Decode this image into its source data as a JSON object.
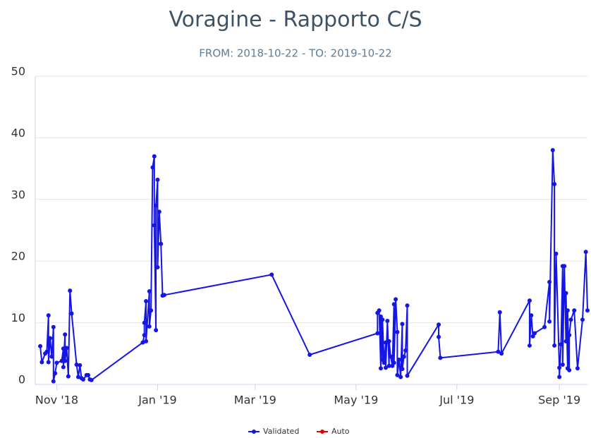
{
  "chart_data": {
    "type": "line",
    "title": "Voragine - Rapporto C/S",
    "subtitle": "FROM: 2018-10-22 - TO: 2019-10-22",
    "xlim": [
      "2018-10-19",
      "2019-09-18"
    ],
    "xticks": [
      {
        "value": "2018-11-01",
        "label": "Nov '18"
      },
      {
        "value": "2019-01-01",
        "label": "Jan '19"
      },
      {
        "value": "2019-03-01",
        "label": "Mar '19"
      },
      {
        "value": "2019-05-01",
        "label": "May '19"
      },
      {
        "value": "2019-07-01",
        "label": "Jul '19"
      },
      {
        "value": "2019-09-01",
        "label": "Sep '19"
      }
    ],
    "ylim": [
      0,
      50
    ],
    "yticks": [
      0,
      10,
      20,
      30,
      40,
      50
    ],
    "grid": true,
    "legend": "bottom",
    "series": [
      {
        "name": "Validated",
        "color": "#1515e6",
        "x": [
          "2018-10-22",
          "2018-10-23",
          "2018-10-25",
          "2018-10-26",
          "2018-10-27",
          "2018-10-27",
          "2018-10-28",
          "2018-10-29",
          "2018-10-30",
          "2018-10-30",
          "2018-10-31",
          "2018-11-01",
          "2018-11-04",
          "2018-11-05",
          "2018-11-05",
          "2018-11-06",
          "2018-11-06",
          "2018-11-07",
          "2018-11-08",
          "2018-11-09",
          "2018-11-10",
          "2018-11-13",
          "2018-11-14",
          "2018-11-15",
          "2018-11-16",
          "2018-11-17",
          "2018-11-19",
          "2018-11-20",
          "2018-11-21",
          "2018-11-22",
          "2018-12-23",
          "2018-12-24",
          "2018-12-24",
          "2018-12-25",
          "2018-12-25",
          "2018-12-27",
          "2018-12-27",
          "2018-12-28",
          "2018-12-29",
          "2018-12-30",
          "2018-12-30",
          "2018-12-31",
          "2018-12-31",
          "2019-01-01",
          "2019-01-01",
          "2019-01-02",
          "2019-01-03",
          "2019-01-04",
          "2019-01-05",
          "2019-03-11",
          "2019-04-03",
          "2019-05-14",
          "2019-05-14",
          "2019-05-15",
          "2019-05-16",
          "2019-05-16",
          "2019-05-17",
          "2019-05-17",
          "2019-05-18",
          "2019-05-19",
          "2019-05-19",
          "2019-05-20",
          "2019-05-21",
          "2019-05-21",
          "2019-05-22",
          "2019-05-23",
          "2019-05-24",
          "2019-05-24",
          "2019-05-25",
          "2019-05-26",
          "2019-05-26",
          "2019-05-27",
          "2019-05-28",
          "2019-05-29",
          "2019-05-29",
          "2019-05-30",
          "2019-05-31",
          "2019-06-01",
          "2019-06-01",
          "2019-06-20",
          "2019-06-20",
          "2019-06-21",
          "2019-07-26",
          "2019-07-27",
          "2019-07-28",
          "2019-08-14",
          "2019-08-14",
          "2019-08-15",
          "2019-08-16",
          "2019-08-17",
          "2019-08-23",
          "2019-08-26",
          "2019-08-26",
          "2019-08-28",
          "2019-08-29",
          "2019-08-29",
          "2019-08-30",
          "2019-09-01",
          "2019-09-01",
          "2019-09-02",
          "2019-09-03",
          "2019-09-03",
          "2019-09-04",
          "2019-09-05",
          "2019-09-05",
          "2019-09-06",
          "2019-09-06",
          "2019-09-07",
          "2019-09-07",
          "2019-09-08",
          "2019-09-10",
          "2019-09-12",
          "2019-09-15",
          "2019-09-17",
          "2019-09-18"
        ],
        "values": [
          6.2,
          3.6,
          5.0,
          5.3,
          11.2,
          3.6,
          7.5,
          4.5,
          9.3,
          0.5,
          1.8,
          3.5,
          3.8,
          5.8,
          2.8,
          8.1,
          3.8,
          5.9,
          1.3,
          15.2,
          11.5,
          3.2,
          1.2,
          3.1,
          1.0,
          0.8,
          1.5,
          1.5,
          0.8,
          0.7,
          6.8,
          8.0,
          10.0,
          13.5,
          7.0,
          15.1,
          9.4,
          12.0,
          35.2,
          37.0,
          25.8,
          8.8,
          29.0,
          33.2,
          19.0,
          28.0,
          22.8,
          14.4,
          14.5,
          17.8,
          4.8,
          8.3,
          11.6,
          12.0,
          2.6,
          11.0,
          4.0,
          10.5,
          3.5,
          6.8,
          2.7,
          10.3,
          3.0,
          7.0,
          4.5,
          3.0,
          13.0,
          3.5,
          13.8,
          8.5,
          1.5,
          4.0,
          1.2,
          9.8,
          2.5,
          4.5,
          5.5,
          12.8,
          1.4,
          9.7,
          7.7,
          4.3,
          5.3,
          11.7,
          5.0,
          13.6,
          6.3,
          11.2,
          7.8,
          8.3,
          9.3,
          16.6,
          10.2,
          38.0,
          32.5,
          6.3,
          21.2,
          2.7,
          1.2,
          6.5,
          19.2,
          3.2,
          19.2,
          7.0,
          14.8,
          2.6,
          12.0,
          2.3,
          8.0,
          10.5,
          12.0,
          2.6,
          10.5,
          21.5,
          12.0
        ]
      },
      {
        "name": "Auto",
        "color": "#e60000",
        "x": [],
        "values": []
      }
    ]
  }
}
